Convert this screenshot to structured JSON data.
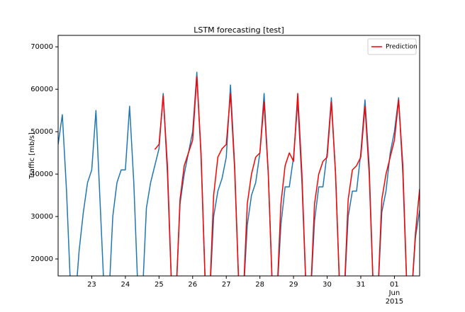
{
  "chart_data": {
    "type": "line",
    "title": "LSTM forecasting [test]",
    "ylabel": "Traffic [mb/s]",
    "x": [
      22,
      22.125,
      22.25,
      22.375,
      22.5,
      22.625,
      22.75,
      22.875,
      23,
      23.125,
      23.25,
      23.375,
      23.5,
      23.625,
      23.75,
      23.875,
      24,
      24.125,
      24.25,
      24.375,
      24.5,
      24.625,
      24.75,
      24.875,
      25,
      25.125,
      25.25,
      25.375,
      25.5,
      25.625,
      25.75,
      25.875,
      26,
      26.125,
      26.25,
      26.375,
      26.5,
      26.625,
      26.75,
      26.875,
      27,
      27.125,
      27.25,
      27.375,
      27.5,
      27.625,
      27.75,
      27.875,
      28,
      28.125,
      28.25,
      28.375,
      28.5,
      28.625,
      28.75,
      28.875,
      29,
      29.125,
      29.25,
      29.375,
      29.5,
      29.625,
      29.75,
      29.875,
      30,
      30.125,
      30.25,
      30.375,
      30.5,
      30.625,
      30.75,
      30.875,
      31,
      31.125,
      31.25,
      31.375,
      31.5,
      31.625,
      31.75,
      31.875,
      32,
      32.125,
      32.25,
      32.375,
      32.5,
      32.625,
      32.75
    ],
    "series": [
      {
        "color": "#1f77b4",
        "values": [
          47000,
          54000,
          36000,
          12000,
          9000,
          22000,
          31000,
          38000,
          41000,
          55000,
          33000,
          11000,
          9000,
          30000,
          38000,
          41000,
          41000,
          56000,
          38000,
          12000,
          10000,
          32000,
          38000,
          42000,
          46000,
          59000,
          40000,
          13000,
          10000,
          33000,
          40000,
          45000,
          50000,
          64000,
          44000,
          14000,
          10000,
          30000,
          36000,
          39000,
          44000,
          61000,
          42000,
          13000,
          10000,
          28000,
          35000,
          38000,
          45000,
          59000,
          40000,
          12000,
          10000,
          28000,
          37000,
          37000,
          44000,
          57000,
          38000,
          12000,
          10000,
          29000,
          37000,
          37000,
          45000,
          58000,
          40000,
          12000,
          10000,
          30000,
          36000,
          36000,
          45000,
          57500,
          42000,
          12000,
          10000,
          31000,
          36000,
          45000,
          50000,
          58000,
          40000,
          12000,
          10000,
          25000,
          31500
        ]
      },
      {
        "name": "Prediction",
        "color": "#ff0000",
        "values": [
          null,
          null,
          null,
          null,
          null,
          null,
          null,
          null,
          null,
          null,
          null,
          null,
          null,
          null,
          null,
          null,
          null,
          null,
          null,
          null,
          null,
          null,
          null,
          45800,
          47000,
          58500,
          42000,
          13000,
          10000,
          34000,
          42000,
          45000,
          48000,
          63000,
          45000,
          14000,
          10000,
          35000,
          44000,
          46000,
          47000,
          59000,
          41000,
          13000,
          10000,
          33000,
          40000,
          44000,
          45000,
          57000,
          40000,
          12000,
          10000,
          33000,
          42000,
          45000,
          43000,
          59000,
          40000,
          12000,
          10000,
          33000,
          40000,
          43000,
          44000,
          57000,
          40000,
          12000,
          10000,
          34000,
          41000,
          42000,
          44000,
          56000,
          40000,
          12000,
          10000,
          34000,
          40000,
          44000,
          48000,
          57500,
          42000,
          12000,
          10000,
          26000,
          36500
        ]
      }
    ],
    "xlim": [
      22,
      32.75
    ],
    "xticks": [
      23,
      24,
      25,
      26,
      27,
      28,
      29,
      30,
      31,
      {
        "value": 32,
        "label": "01"
      }
    ],
    "xtick_month": "Jun",
    "xtick_year": "2015",
    "ylim": [
      16000,
      72700
    ],
    "yticks": [
      20000,
      30000,
      40000,
      50000,
      60000,
      70000
    ],
    "legend": "upper right"
  }
}
